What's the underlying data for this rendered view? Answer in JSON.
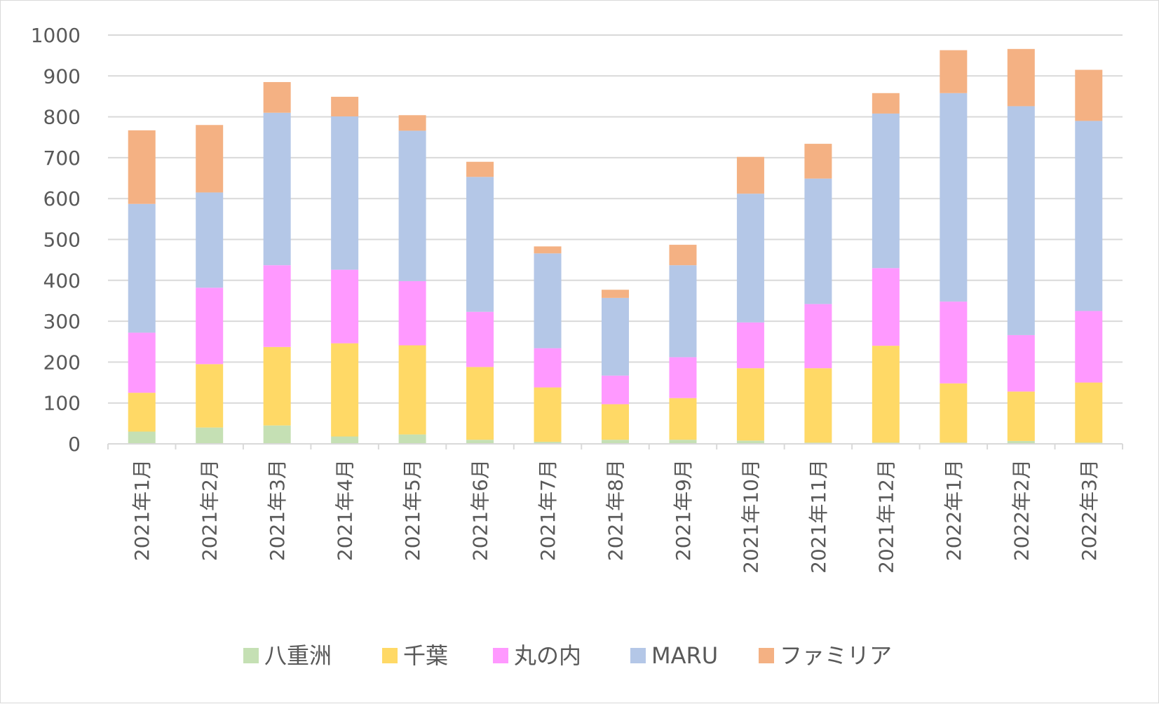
{
  "chart_data": {
    "type": "bar",
    "stacked": true,
    "title": "",
    "xlabel": "",
    "ylabel": "",
    "ylim": [
      0,
      1000
    ],
    "yticks": [
      0,
      100,
      200,
      300,
      400,
      500,
      600,
      700,
      800,
      900,
      1000
    ],
    "grid": true,
    "legend_position": "bottom",
    "categories": [
      "2021年1月",
      "2021年2月",
      "2021年3月",
      "2021年4月",
      "2021年5月",
      "2021年6月",
      "2021年7月",
      "2021年8月",
      "2021年9月",
      "2021年10月",
      "2021年11月",
      "2021年12月",
      "2022年1月",
      "2022年2月",
      "2022年3月"
    ],
    "series": [
      {
        "name": "八重洲",
        "color": "#c5e0b4",
        "values": [
          30,
          40,
          45,
          18,
          23,
          10,
          5,
          10,
          10,
          8,
          3,
          3,
          3,
          7,
          3
        ]
      },
      {
        "name": "千葉",
        "color": "#ffd966",
        "values": [
          95,
          155,
          192,
          228,
          218,
          178,
          133,
          87,
          102,
          177,
          182,
          237,
          145,
          121,
          147
        ]
      },
      {
        "name": "丸の内",
        "color": "#ff99ff",
        "values": [
          147,
          187,
          200,
          180,
          157,
          135,
          96,
          70,
          100,
          112,
          157,
          190,
          200,
          138,
          175
        ]
      },
      {
        "name": "MARU",
        "color": "#b4c7e7",
        "values": [
          315,
          233,
          373,
          375,
          368,
          330,
          232,
          190,
          225,
          315,
          307,
          378,
          510,
          560,
          465
        ]
      },
      {
        "name": "ファミリア",
        "color": "#f4b183",
        "values": [
          180,
          165,
          75,
          48,
          38,
          37,
          17,
          20,
          50,
          90,
          85,
          50,
          105,
          140,
          125
        ]
      }
    ]
  }
}
